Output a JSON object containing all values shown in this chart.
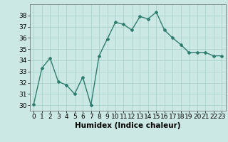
{
  "x": [
    0,
    1,
    2,
    3,
    4,
    5,
    6,
    7,
    8,
    9,
    10,
    11,
    12,
    13,
    14,
    15,
    16,
    17,
    18,
    19,
    20,
    21,
    22,
    23
  ],
  "y": [
    30.1,
    33.3,
    34.2,
    32.1,
    31.8,
    31.0,
    32.5,
    30.0,
    34.4,
    35.9,
    37.4,
    37.2,
    36.7,
    37.9,
    37.7,
    38.3,
    36.7,
    36.0,
    35.4,
    34.7,
    34.7,
    34.7,
    34.4,
    34.4
  ],
  "line_color": "#2e7d6e",
  "marker": "D",
  "marker_size": 2,
  "line_width": 1.0,
  "xlabel": "Humidex (Indice chaleur)",
  "xlim": [
    -0.5,
    23.5
  ],
  "ylim": [
    29.5,
    39.0
  ],
  "yticks": [
    30,
    31,
    32,
    33,
    34,
    35,
    36,
    37,
    38
  ],
  "xticks": [
    0,
    1,
    2,
    3,
    4,
    5,
    6,
    7,
    8,
    9,
    10,
    11,
    12,
    13,
    14,
    15,
    16,
    17,
    18,
    19,
    20,
    21,
    22,
    23
  ],
  "bg_color": "#cce8e4",
  "grid_color": "#aad4cf",
  "tick_fontsize": 6.5,
  "xlabel_fontsize": 7.5
}
